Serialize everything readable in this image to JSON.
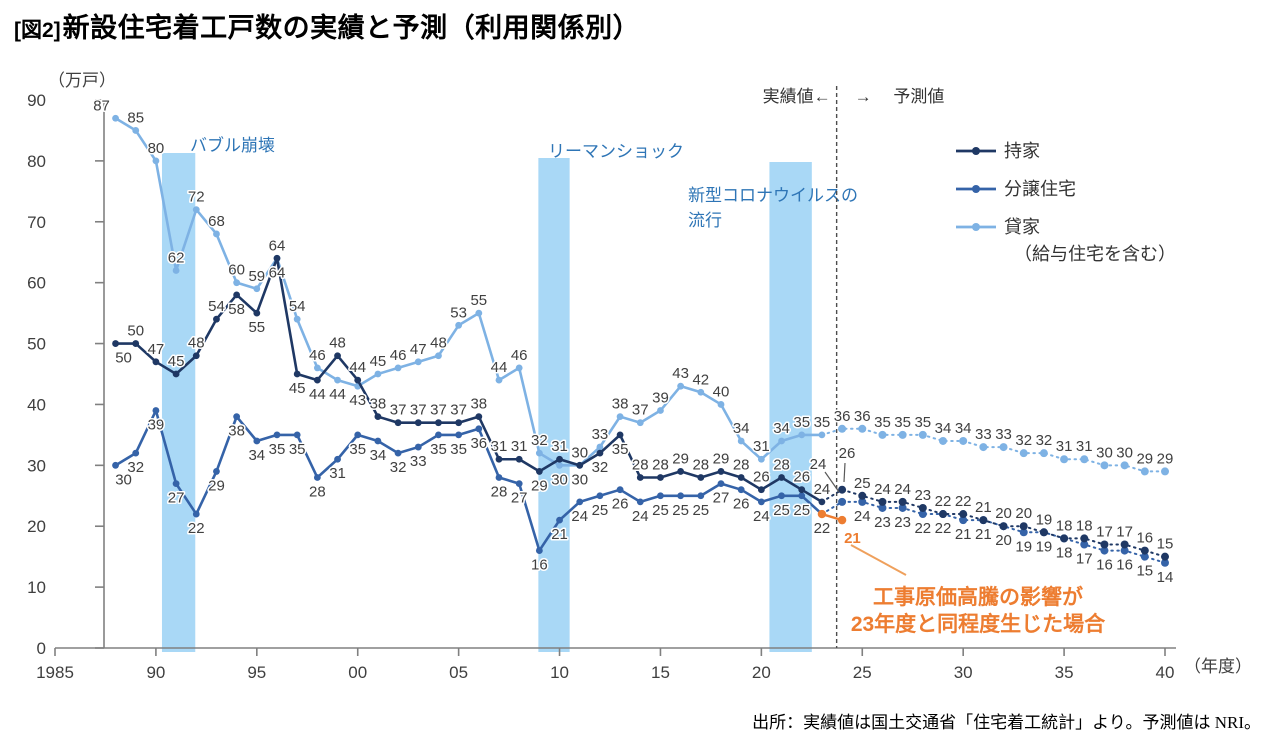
{
  "title": {
    "tag": "[図2]",
    "text": "新設住宅着工戸数の実績と予測（利用関係別）"
  },
  "source": "出所：実績値は国土交通省「住宅着工統計」より。予測値は NRI。",
  "chart_data": {
    "type": "line",
    "y_unit_label": "（万戸）",
    "x_unit_label": "（年度）",
    "ylim": [
      0,
      90
    ],
    "ytick_step": 10,
    "xticks": [
      {
        "year": 1985,
        "label": "1985"
      },
      {
        "year": 1990,
        "label": "90"
      },
      {
        "year": 1995,
        "label": "95"
      },
      {
        "year": 2000,
        "label": "00"
      },
      {
        "year": 2005,
        "label": "05"
      },
      {
        "year": 2010,
        "label": "10"
      },
      {
        "year": 2015,
        "label": "15"
      },
      {
        "year": 2020,
        "label": "20"
      },
      {
        "year": 2025,
        "label": "25"
      },
      {
        "year": 2030,
        "label": "30"
      },
      {
        "year": 2035,
        "label": "35"
      },
      {
        "year": 2040,
        "label": "40"
      }
    ],
    "divider": {
      "year": 2023.73,
      "left_label": "実績値←",
      "right_label": "→　 予測値"
    },
    "bands": [
      {
        "lines": [
          "バブル崩壊"
        ],
        "from": 1990.3,
        "to": 1991.95
      },
      {
        "lines": [
          "リーマンショック"
        ],
        "from": 2008.95,
        "to": 2010.5
      },
      {
        "lines": [
          "新型コロナウイルスの",
          "流行"
        ],
        "from": 2020.4,
        "to": 2022.5
      }
    ],
    "band_color": "#A9D8F6",
    "series": [
      {
        "id": "rental",
        "name": "貸家",
        "name_sub": "（給与住宅を含む）",
        "color": "#7EB2E4",
        "actual": {
          "start": 1988,
          "values": [
            87,
            85,
            80,
            62,
            72,
            68,
            60,
            59,
            64,
            54,
            46,
            44,
            43,
            45,
            46,
            47,
            48,
            53,
            55,
            44,
            46,
            32,
            30,
            30,
            33,
            38,
            37,
            39,
            43,
            42,
            40,
            34,
            31,
            34,
            35,
            35
          ]
        },
        "forecast": {
          "start": 2024,
          "values": [
            36,
            36,
            35,
            35,
            35,
            34,
            34,
            33,
            33,
            32,
            32,
            31,
            31,
            30,
            30,
            29,
            29
          ]
        }
      },
      {
        "id": "condo",
        "name": "分譲住宅",
        "name_sub": "",
        "color": "#3563A8",
        "actual": {
          "start": 1988,
          "values": [
            30,
            32,
            39,
            27,
            22,
            29,
            38,
            34,
            35,
            35,
            28,
            31,
            35,
            34,
            32,
            33,
            35,
            35,
            36,
            28,
            27,
            16,
            21,
            24,
            25,
            26,
            24,
            25,
            25,
            25,
            27,
            26,
            24,
            25,
            25,
            22
          ]
        },
        "forecast": {
          "start": 2024,
          "values": [
            24,
            24,
            23,
            23,
            22,
            22,
            21,
            21,
            20,
            19,
            19,
            18,
            17,
            16,
            16,
            15,
            14
          ]
        }
      },
      {
        "id": "owner",
        "name": "持家",
        "name_sub": "",
        "color": "#1F3864",
        "actual": {
          "start": 1988,
          "values": [
            50,
            50,
            47,
            45,
            48,
            54,
            58,
            55,
            64,
            45,
            44,
            48,
            44,
            38,
            37,
            37,
            37,
            37,
            38,
            31,
            31,
            29,
            31,
            30,
            32,
            35,
            28,
            28,
            29,
            28,
            29,
            28,
            26,
            28,
            26,
            24
          ]
        },
        "forecast": {
          "start": 2024,
          "values": [
            26,
            25,
            24,
            24,
            23,
            22,
            22,
            21,
            20,
            20,
            19,
            18,
            18,
            17,
            17,
            16,
            15
          ]
        }
      }
    ],
    "legend_order": [
      "owner",
      "condo",
      "rental"
    ],
    "scenario": {
      "color": "#ED7D31",
      "points": [
        {
          "year": 2023,
          "value": 22
        },
        {
          "year": 2024,
          "value": 21
        }
      ],
      "annotation_lines": [
        "工事原価高騰の影響が",
        "23年度と同程度生じた場合"
      ]
    }
  }
}
